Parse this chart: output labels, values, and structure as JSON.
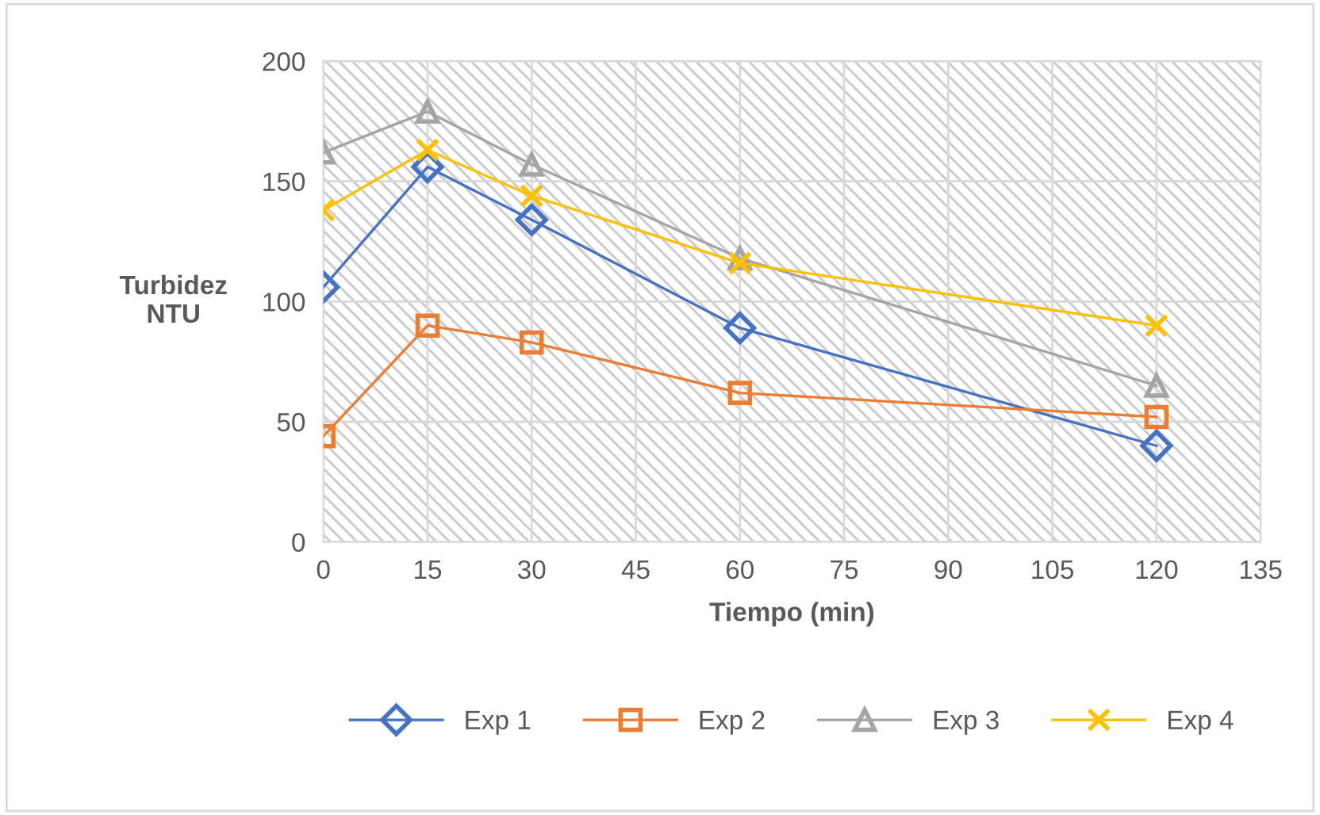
{
  "chart_data": {
    "type": "line",
    "xlabel": "Tiempo (min)",
    "ylabel": "Turbidez\nNTU",
    "x": [
      0,
      15,
      30,
      60,
      120
    ],
    "xlim": [
      0,
      135
    ],
    "xticks": [
      0,
      15,
      30,
      45,
      60,
      75,
      90,
      105,
      120,
      135
    ],
    "ylim": [
      0,
      200
    ],
    "yticks": [
      0,
      50,
      100,
      150,
      200
    ],
    "grid": true,
    "legend": "bottom",
    "series": [
      {
        "name": "Exp 1",
        "color": "#4472c4",
        "marker": "diamond",
        "values": [
          106,
          156,
          134,
          89,
          40
        ]
      },
      {
        "name": "Exp 2",
        "color": "#ed7d31",
        "marker": "square",
        "values": [
          44,
          90,
          83,
          62,
          52
        ]
      },
      {
        "name": "Exp 3",
        "color": "#a5a5a5",
        "marker": "triangle",
        "values": [
          162,
          179,
          157,
          118,
          65
        ]
      },
      {
        "name": "Exp 4",
        "color": "#ffc000",
        "marker": "cross",
        "values": [
          138,
          163,
          144,
          116,
          90
        ]
      }
    ]
  }
}
